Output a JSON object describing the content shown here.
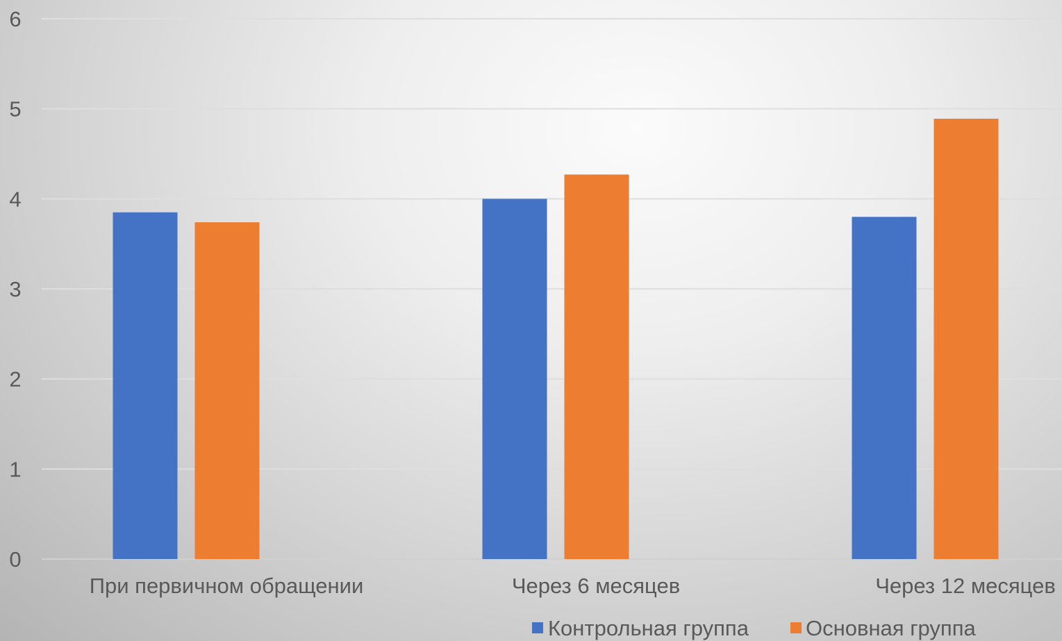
{
  "chart_data": {
    "type": "bar",
    "title": "",
    "xlabel": "",
    "ylabel": "",
    "categories": [
      "При первичном обращении",
      "Через 6 месяцев",
      "Через 12 месяцев"
    ],
    "series": [
      {
        "name": "Контрольная группа",
        "values": [
          3.85,
          4.0,
          3.8
        ],
        "color": "#4472c4"
      },
      {
        "name": "Основная группа",
        "values": [
          3.74,
          4.27,
          4.89
        ],
        "color": "#ed7d31"
      }
    ],
    "ylim": [
      0,
      6
    ],
    "yticks": [
      0,
      1,
      2,
      3,
      4,
      5,
      6
    ],
    "grid": true,
    "legend": "bottom-right"
  }
}
